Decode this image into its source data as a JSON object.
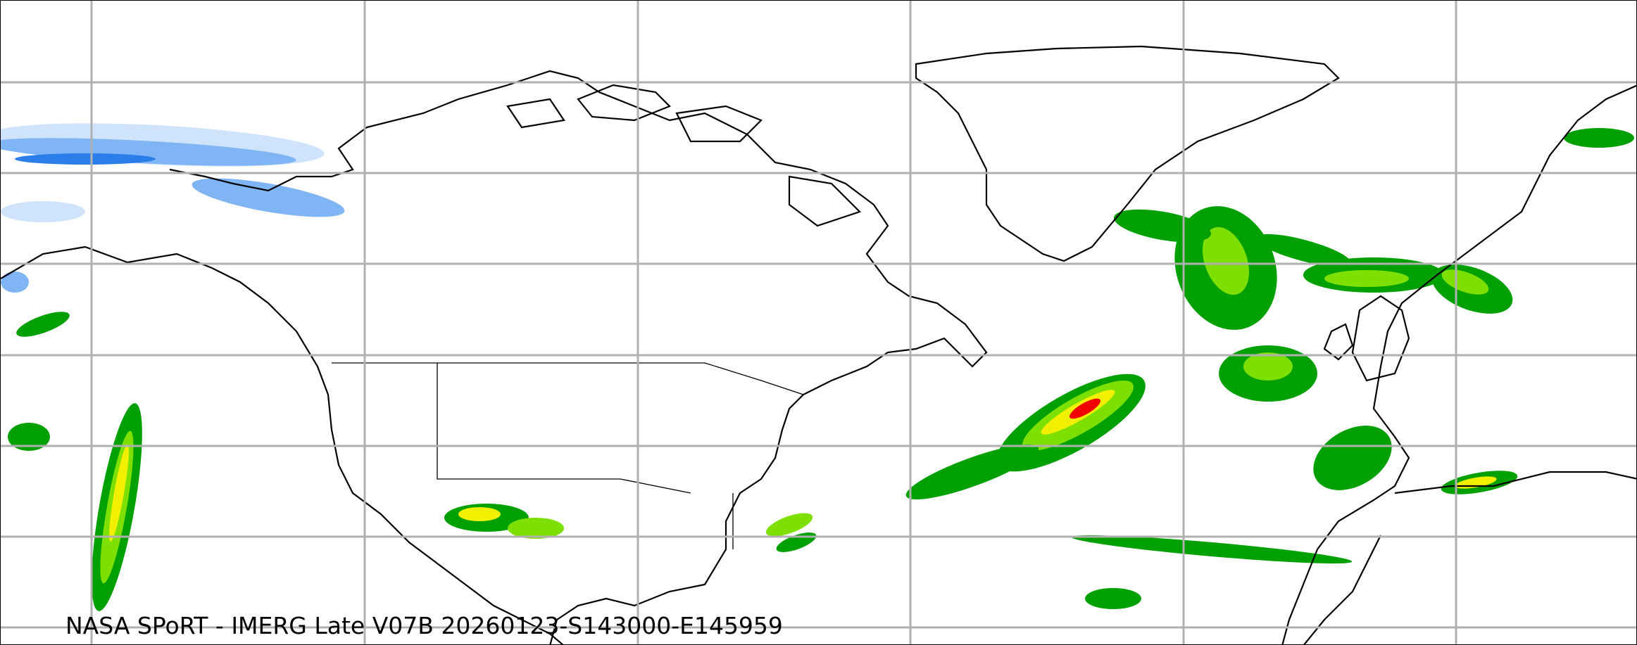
{
  "caption": "NASA SPoRT - IMERG Late V07B 20260123-S143000-E145959",
  "colors": {
    "gridline": "#b0b0b0",
    "coastline": "#000000",
    "snow_light": "#cfe3fb",
    "snow_medium": "#7fb4f5",
    "snow_heavy": "#2b7de9",
    "rain_light": "#00a000",
    "rain_moderate": "#7ee000",
    "rain_heavy": "#f0f000",
    "rain_very_heavy": "#f00000"
  }
}
